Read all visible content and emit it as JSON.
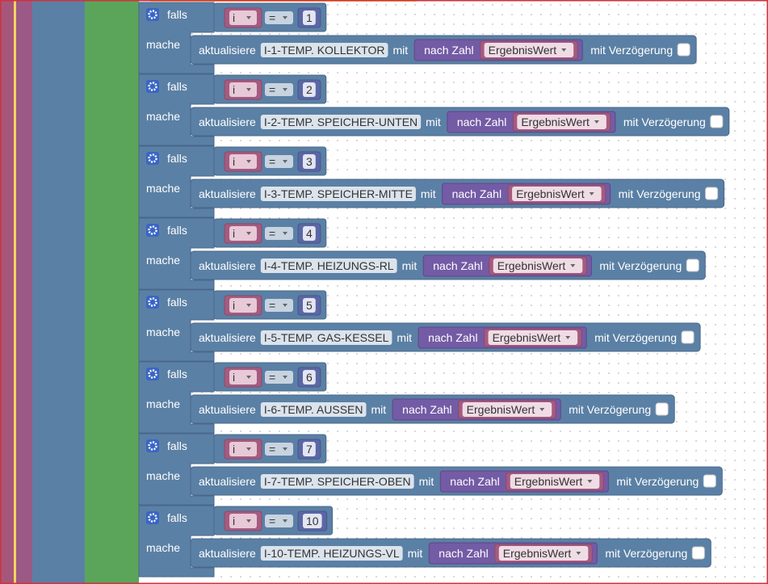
{
  "labels": {
    "condition": "falls",
    "action": "mache",
    "update": "aktualisiere",
    "with": "mit",
    "to_number": "nach Zahl",
    "variable": "i",
    "operator": "=",
    "value_var": "ErgebnisWert",
    "delay": "mit Verzögerung"
  },
  "blocks": [
    {
      "number": 1,
      "target": "I-1-TEMP. KOLLEKTOR"
    },
    {
      "number": 2,
      "target": "I-2-TEMP. SPEICHER-UNTEN"
    },
    {
      "number": 3,
      "target": "I-3-TEMP. SPEICHER-MITTE"
    },
    {
      "number": 4,
      "target": "I-4-TEMP. HEIZUNGS-RL"
    },
    {
      "number": 5,
      "target": "I-5-TEMP. GAS-KESSEL"
    },
    {
      "number": 6,
      "target": "I-6-TEMP. AUSSEN"
    },
    {
      "number": 7,
      "target": "I-7-TEMP. SPEICHER-OBEN"
    },
    {
      "number": 10,
      "target": "I-10-TEMP. HEIZUNGS-VL"
    }
  ]
}
